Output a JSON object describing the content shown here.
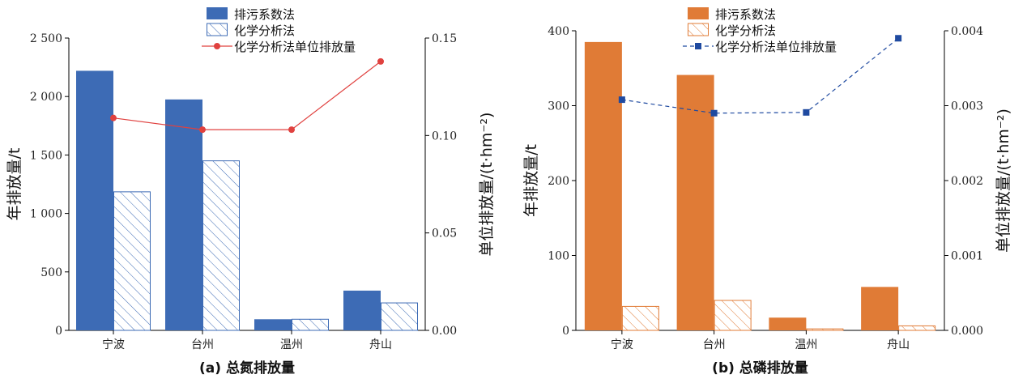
{
  "chart_data": [
    {
      "type": "bar",
      "caption": "(a) 总氮排放量",
      "categories": [
        "宁波",
        "台州",
        "温州",
        "舟山"
      ],
      "series": [
        {
          "name": "排污系数法",
          "values": [
            2220,
            1975,
            95,
            340
          ],
          "axis": "left",
          "kind": "bar",
          "style": "solid"
        },
        {
          "name": "化学分析法",
          "values": [
            1185,
            1450,
            95,
            235
          ],
          "axis": "left",
          "kind": "bar",
          "style": "hatched"
        },
        {
          "name": "化学分析法单位排放量",
          "values": [
            0.109,
            0.103,
            0.103,
            0.138
          ],
          "axis": "right",
          "kind": "line",
          "marker": "circle"
        }
      ],
      "ylabel": "年排放量/t",
      "y2label": "单位排放量/(t·hm⁻²)",
      "ylim": [
        0,
        2500
      ],
      "y2lim": [
        0,
        0.15
      ],
      "yticks": [
        "0",
        "500",
        "1 000",
        "1 500",
        "2 000",
        "2 500"
      ],
      "y2ticks": [
        "0.00",
        "0.05",
        "0.10",
        "0.15"
      ],
      "colors": {
        "main": "#3d6bb5",
        "line": "#e0413f"
      },
      "legend_position": "top"
    },
    {
      "type": "bar",
      "caption": "(b) 总磷排放量",
      "categories": [
        "宁波",
        "台州",
        "温州",
        "舟山"
      ],
      "series": [
        {
          "name": "排污系数法",
          "values": [
            385,
            341,
            17,
            58
          ],
          "axis": "left",
          "kind": "bar",
          "style": "solid"
        },
        {
          "name": "化学分析法",
          "values": [
            32,
            40,
            2,
            6
          ],
          "axis": "left",
          "kind": "bar",
          "style": "hatched"
        },
        {
          "name": "化学分析法单位排放量",
          "values": [
            0.00308,
            0.0029,
            0.00291,
            0.0039
          ],
          "axis": "right",
          "kind": "line",
          "marker": "square",
          "dashed": true
        }
      ],
      "ylabel": "年排放量/t",
      "y2label": "单位排放量/(t·hm⁻²)",
      "ylim": [
        0,
        400
      ],
      "y2lim": [
        0,
        0.004
      ],
      "yticks": [
        "0",
        "100",
        "200",
        "300",
        "400"
      ],
      "y2ticks": [
        "0.000",
        "0.001",
        "0.002",
        "0.003",
        "0.004"
      ],
      "colors": {
        "main": "#e07b36",
        "line": "#1f4aa0"
      },
      "legend_position": "top"
    }
  ]
}
